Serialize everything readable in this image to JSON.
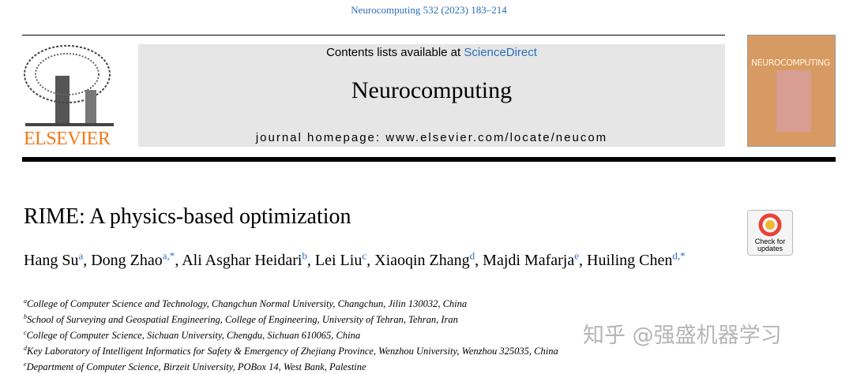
{
  "header": {
    "journal_ref": "Neurocomputing 532 (2023) 183–214",
    "contents_label": "Contents lists available at",
    "sciencedirect": "ScienceDirect",
    "journal_name": "Neurocomputing",
    "homepage": "journal homepage: www.elsevier.com/locate/neucom",
    "publisher": "ELSEVIER",
    "cover_title": "NEUROCOMPUTING"
  },
  "badge": {
    "line1": "Check for",
    "line2": "updates"
  },
  "article": {
    "title": "RIME: A physics-based optimization",
    "authors": [
      {
        "name": "Hang Su",
        "sup": "a",
        "punct": ","
      },
      {
        "name": "Dong Zhao",
        "sup": "a,*",
        "punct": ","
      },
      {
        "name": "Ali Asghar Heidari",
        "sup": "b",
        "punct": ","
      },
      {
        "name": "Lei Liu",
        "sup": "c",
        "punct": ","
      },
      {
        "name": "Xiaoqin Zhang",
        "sup": "d",
        "punct": ","
      },
      {
        "name": "Majdi Mafarja",
        "sup": "e",
        "punct": ","
      },
      {
        "name": "Huiling Chen",
        "sup": "d,*"
      }
    ],
    "affiliations": [
      {
        "mark": "a",
        "text": "College of Computer Science and Technology, Changchun Normal University, Changchun, Jilin 130032, China"
      },
      {
        "mark": "b",
        "text": "School of Surveying and Geospatial Engineering, College of Engineering, University of Tehran, Tehran, Iran"
      },
      {
        "mark": "c",
        "text": "College of Computer Science, Sichuan University, Chengdu, Sichuan 610065, China"
      },
      {
        "mark": "d",
        "text": "Key Laboratory of Intelligent Informatics for Safety & Emergency of Zhejiang Province, Wenzhou University, Wenzhou 325035, China"
      },
      {
        "mark": "e",
        "text": "Department of Computer Science, Birzeit University, POBox 14, West Bank, Palestine"
      }
    ]
  },
  "watermark": "知乎 @强盛机器学习"
}
